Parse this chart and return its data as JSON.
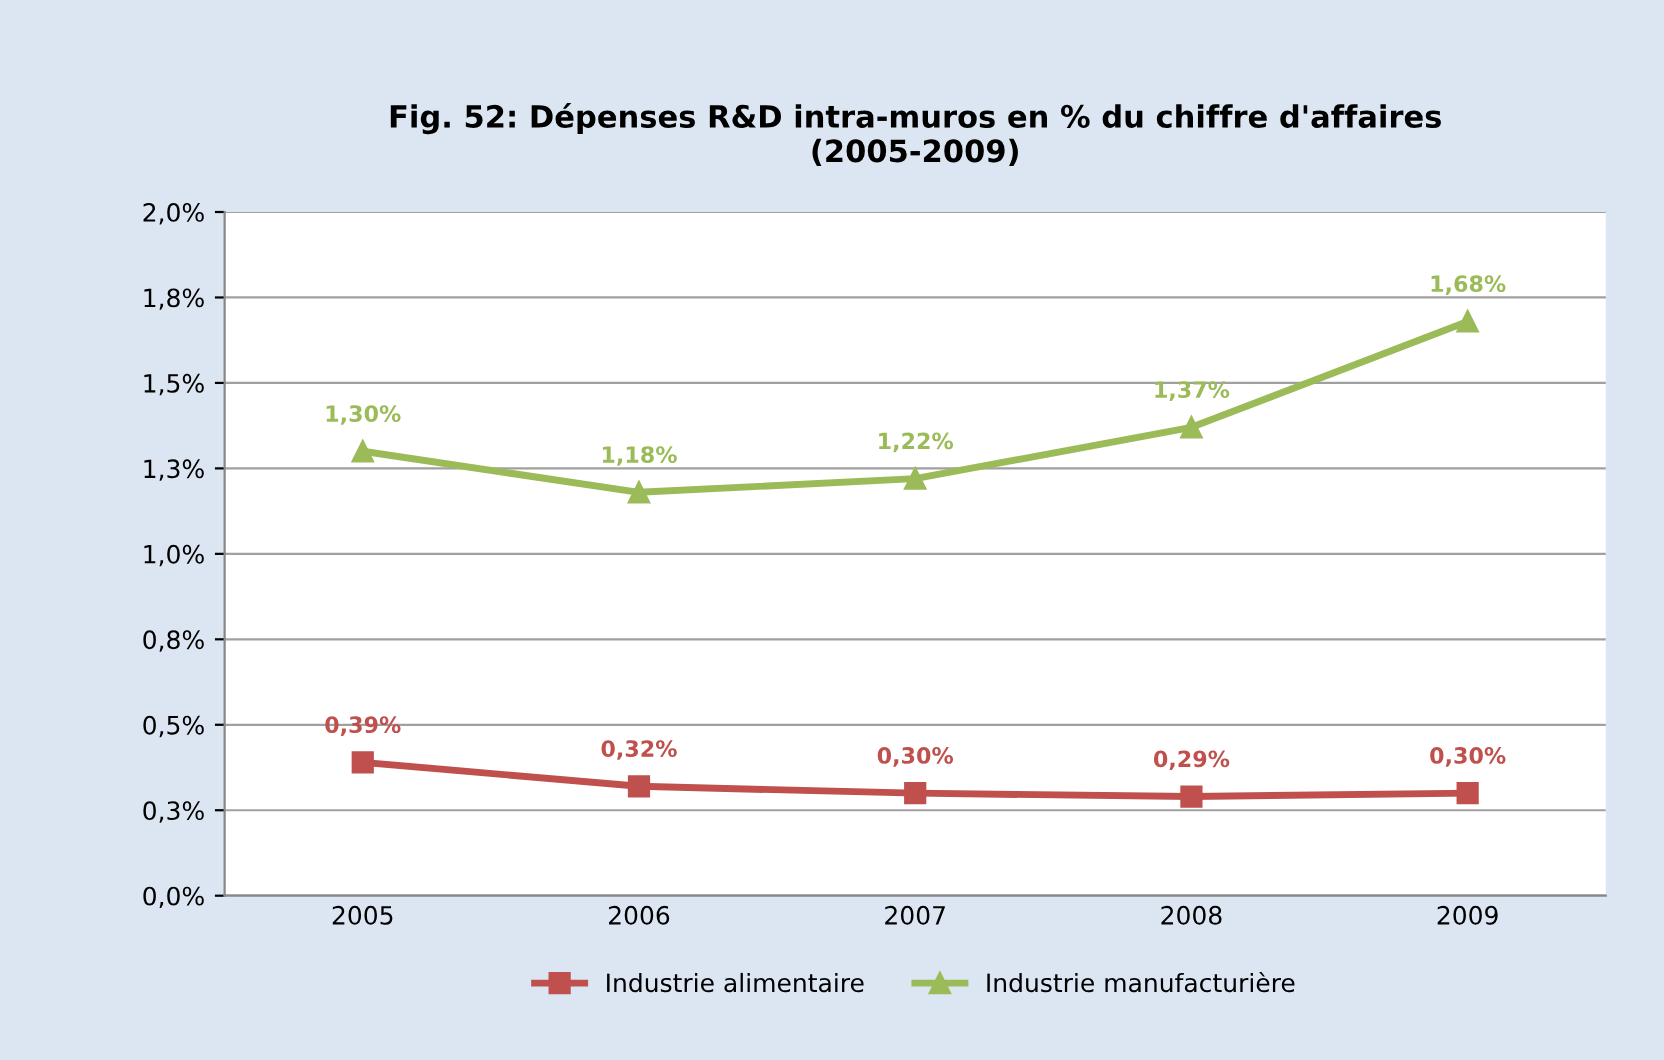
{
  "chart_data": {
    "type": "line",
    "title": "Fig. 52: Dépenses R&D intra-muros en % du chiffre d'affaires\n(2005-2009)",
    "categories": [
      "2005",
      "2006",
      "2007",
      "2008",
      "2009"
    ],
    "series": [
      {
        "name": "Industrie alimentaire",
        "color": "#c0504d",
        "marker": "square",
        "values": [
          0.39,
          0.32,
          0.3,
          0.29,
          0.3
        ],
        "value_labels": [
          "0,39%",
          "0,32%",
          "0,30%",
          "0,29%",
          "0,30%"
        ]
      },
      {
        "name": "Industrie manufacturière",
        "color": "#9bbb59",
        "marker": "triangle",
        "values": [
          1.3,
          1.18,
          1.22,
          1.37,
          1.68
        ],
        "value_labels": [
          "1,30%",
          "1,18%",
          "1,22%",
          "1,37%",
          "1,68%"
        ]
      }
    ],
    "ylim": [
      0,
      2.0
    ],
    "yticks": [
      {
        "value": 0,
        "label": "0,0%"
      },
      {
        "value": 0.25,
        "label": "0,3%"
      },
      {
        "value": 0.5,
        "label": "0,5%"
      },
      {
        "value": 0.75,
        "label": "0,8%"
      },
      {
        "value": 1.0,
        "label": "1,0%"
      },
      {
        "value": 1.25,
        "label": "1,3%"
      },
      {
        "value": 1.5,
        "label": "1,5%"
      },
      {
        "value": 1.75,
        "label": "1,8%"
      },
      {
        "value": 2.0,
        "label": "2,0%"
      }
    ],
    "grid": "y",
    "legend": "bottom",
    "line_style": "solid"
  }
}
